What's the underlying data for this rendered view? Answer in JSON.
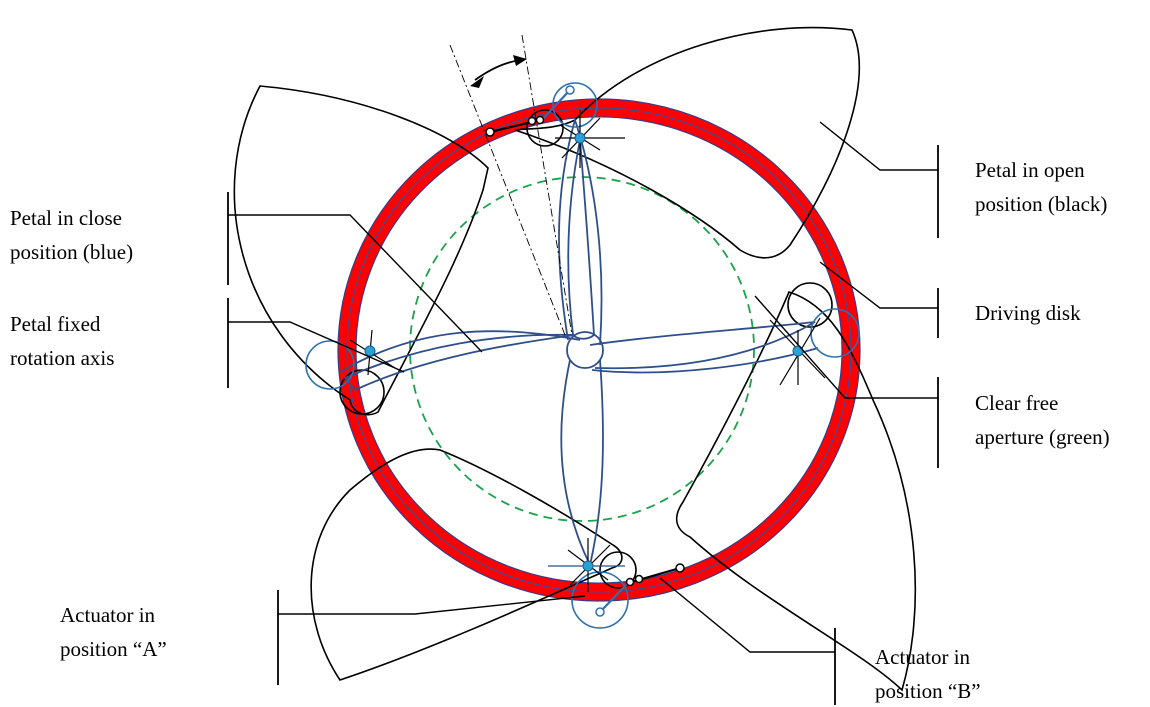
{
  "labels": {
    "petal_open_1": "Petal in open",
    "petal_open_2": "position (black)",
    "driving_disk": "Driving disk",
    "clear_aperture_1": "Clear free",
    "clear_aperture_2": "aperture (green)",
    "actuator_b_1": "Actuator in",
    "actuator_b_2": "position “B”",
    "petal_close_1": "Petal in close",
    "petal_close_2": "position (blue)",
    "petal_axis_1": "Petal fixed",
    "petal_axis_2": "rotation axis",
    "actuator_a_1": "Actuator in",
    "actuator_a_2": "position “A”"
  },
  "colors": {
    "driving_disk": "#ff0000",
    "petal_closed": "#2f4f8a",
    "actuator": "#2e6fb0",
    "pivot_fill": "#29a3d6",
    "aperture": "#1aa34a",
    "petal_open": "#000000"
  }
}
